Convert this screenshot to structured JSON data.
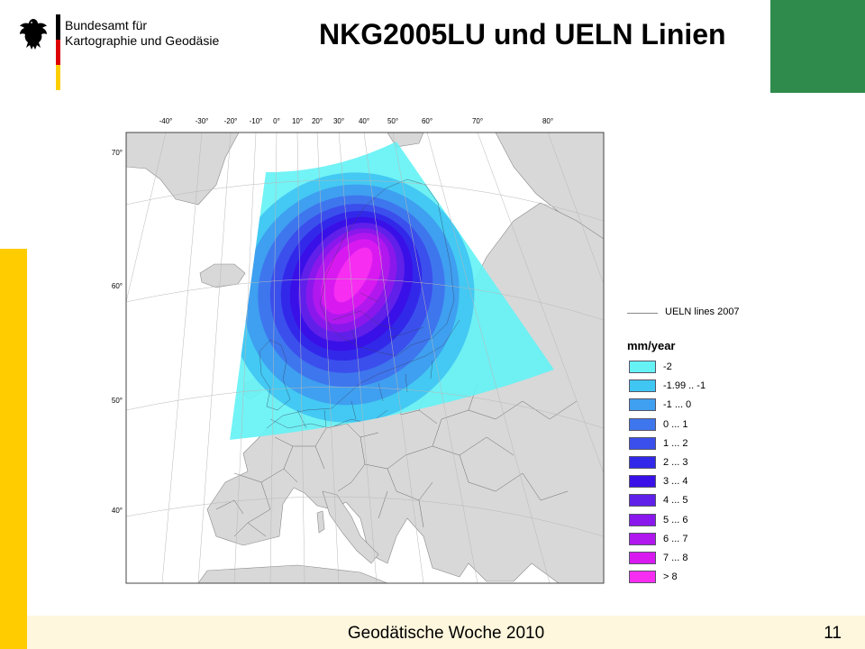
{
  "header": {
    "org_line1": "Bundesamt für",
    "org_line2": "Kartographie und Geodäsie",
    "title": "NKG2005LU und UELN Linien"
  },
  "map": {
    "lon_labels": [
      "-40°",
      "-30°",
      "-20°",
      "-10°",
      "0°",
      "10°",
      "20°",
      "30°",
      "40°",
      "50°",
      "60°",
      "70°",
      "80°"
    ],
    "lat_labels": [
      "70°",
      "60°",
      "50°",
      "40°"
    ],
    "legend": {
      "line_label": "UELN lines 2007",
      "unit": "mm/year",
      "items": [
        {
          "label": "-2",
          "color": "#66f2f5"
        },
        {
          "label": "-1.99 .. -1",
          "color": "#40c6f2"
        },
        {
          "label": "-1 ... 0",
          "color": "#3f9ff0"
        },
        {
          "label": "0 ... 1",
          "color": "#3e76ee"
        },
        {
          "label": "1 ... 2",
          "color": "#3b4fec"
        },
        {
          "label": "2 ... 3",
          "color": "#3228ea"
        },
        {
          "label": "3 ... 4",
          "color": "#3a10e8"
        },
        {
          "label": "4 ... 5",
          "color": "#6020ea"
        },
        {
          "label": "5 ...  6",
          "color": "#8a18ec"
        },
        {
          "label": "6 ... 7",
          "color": "#b018ee"
        },
        {
          "label": "7 ... 8",
          "color": "#d81af0"
        },
        {
          "label": "> 8",
          "color": "#f72df2"
        }
      ],
      "line_color": "#888888"
    },
    "colors": {
      "land": "#d8d8d8",
      "sea": "#ffffff",
      "border": "#666666"
    }
  },
  "footer": {
    "text": "Geodätische Woche 2010",
    "page": "11"
  },
  "accent": {
    "green": "#2e8b4c",
    "yellow": "#ffcc00",
    "footer_bg": "#fff7dd"
  }
}
